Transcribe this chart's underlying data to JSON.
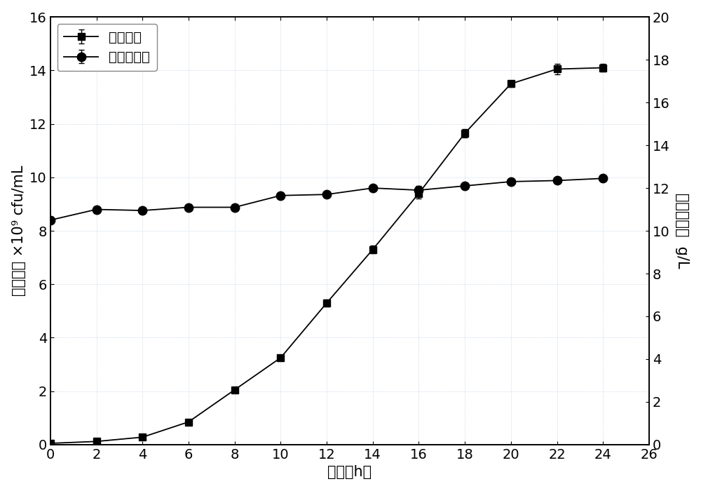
{
  "time": [
    0,
    2,
    4,
    6,
    8,
    10,
    12,
    14,
    16,
    18,
    20,
    22,
    24
  ],
  "bacteria": [
    0.05,
    0.12,
    0.28,
    0.85,
    2.05,
    3.25,
    5.3,
    7.3,
    9.4,
    11.65,
    13.5,
    14.05,
    14.1
  ],
  "bacteria_err": [
    0.05,
    0.05,
    0.05,
    0.07,
    0.1,
    0.1,
    0.12,
    0.15,
    0.2,
    0.15,
    0.12,
    0.2,
    0.15
  ],
  "glucose": [
    10.5,
    11.0,
    10.95,
    11.1,
    11.1,
    11.65,
    11.7,
    12.0,
    11.9,
    12.1,
    12.3,
    12.35,
    12.45
  ],
  "glucose_err": [
    0.15,
    0.12,
    0.1,
    0.12,
    0.1,
    0.1,
    0.1,
    0.1,
    0.2,
    0.1,
    0.12,
    0.12,
    0.1
  ],
  "xlabel": "时间（h）",
  "ylabel_left": "活菌浓度 ×10⁹ cfu/mL",
  "ylabel_right": "葡萄糖浓度  g/L",
  "legend_bacteria": "活菌浓度",
  "legend_glucose": "葡萄糖浓度",
  "xlim": [
    0,
    26
  ],
  "ylim_left": [
    0,
    16
  ],
  "ylim_right": [
    0,
    20
  ],
  "xticks": [
    0,
    2,
    4,
    6,
    8,
    10,
    12,
    14,
    16,
    18,
    20,
    22,
    24,
    26
  ],
  "yticks_left": [
    0,
    2,
    4,
    6,
    8,
    10,
    12,
    14,
    16
  ],
  "yticks_right": [
    0,
    2,
    4,
    6,
    8,
    10,
    12,
    14,
    16,
    18,
    20
  ],
  "line_color": "#000000",
  "bg_color": "#ffffff",
  "font_size": 15,
  "tick_font_size": 14,
  "legend_font_size": 14
}
